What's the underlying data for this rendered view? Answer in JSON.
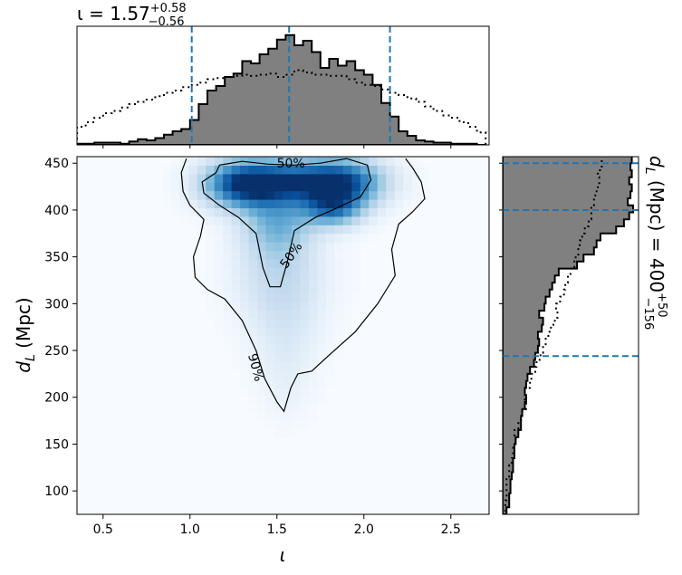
{
  "chart_data": {
    "type": "heatmap",
    "main": {
      "xlabel": "ι",
      "ylabel": "d_L (Mpc)",
      "xlim": [
        0.35,
        2.72
      ],
      "ylim": [
        75,
        457
      ],
      "xticks": [
        "0.5",
        "1.0",
        "1.5",
        "2.0",
        "2.5"
      ],
      "xtick_values": [
        0.5,
        1.0,
        1.5,
        2.0,
        2.5
      ],
      "yticks": [
        "100",
        "150",
        "200",
        "250",
        "300",
        "350",
        "400",
        "450"
      ],
      "ytick_values": [
        100,
        150,
        200,
        250,
        300,
        350,
        400,
        450
      ],
      "colormap": "Blues",
      "density_peaks": [
        {
          "x": 1.3,
          "y": 428,
          "weight": 1.0,
          "sx": 0.16,
          "sy": 18
        },
        {
          "x": 1.88,
          "y": 430,
          "weight": 0.95,
          "sx": 0.17,
          "sy": 18
        },
        {
          "x": 1.58,
          "y": 432,
          "weight": 0.7,
          "sx": 0.2,
          "sy": 16
        },
        {
          "x": 1.82,
          "y": 402,
          "weight": 0.7,
          "sx": 0.12,
          "sy": 14
        },
        {
          "x": 1.5,
          "y": 388,
          "weight": 0.5,
          "sx": 0.14,
          "sy": 25
        },
        {
          "x": 1.52,
          "y": 330,
          "weight": 0.28,
          "sx": 0.18,
          "sy": 35
        },
        {
          "x": 1.55,
          "y": 265,
          "weight": 0.14,
          "sx": 0.14,
          "sy": 35
        },
        {
          "x": 1.55,
          "y": 205,
          "weight": 0.06,
          "sx": 0.1,
          "sy": 25
        }
      ],
      "contours": [
        {
          "label": "50%",
          "points": [
            [
              1.15,
              440
            ],
            [
              1.17,
              448
            ],
            [
              1.3,
              452
            ],
            [
              1.45,
              449
            ],
            [
              1.6,
              448
            ],
            [
              1.75,
              450
            ],
            [
              1.9,
              455
            ],
            [
              2.02,
              448
            ],
            [
              2.04,
              432
            ],
            [
              1.98,
              414
            ],
            [
              1.82,
              400
            ],
            [
              1.72,
              392
            ],
            [
              1.6,
              378
            ],
            [
              1.56,
              345
            ],
            [
              1.52,
              318
            ],
            [
              1.46,
              318
            ],
            [
              1.42,
              338
            ],
            [
              1.38,
              375
            ],
            [
              1.28,
              392
            ],
            [
              1.17,
              405
            ],
            [
              1.08,
              418
            ],
            [
              1.07,
              430
            ],
            [
              1.15,
              440
            ]
          ]
        },
        {
          "label": "90%",
          "points": [
            [
              0.98,
              455
            ],
            [
              0.95,
              440
            ],
            [
              0.96,
              420
            ],
            [
              1.0,
              405
            ],
            [
              1.08,
              390
            ],
            [
              1.06,
              372
            ],
            [
              1.02,
              350
            ],
            [
              1.03,
              328
            ],
            [
              1.1,
              315
            ],
            [
              1.2,
              305
            ],
            [
              1.3,
              282
            ],
            [
              1.38,
              250
            ],
            [
              1.43,
              220
            ],
            [
              1.5,
              195
            ],
            [
              1.54,
              185
            ],
            [
              1.58,
              210
            ],
            [
              1.62,
              225
            ],
            [
              1.7,
              228
            ],
            [
              1.8,
              245
            ],
            [
              1.95,
              270
            ],
            [
              2.08,
              300
            ],
            [
              2.18,
              330
            ],
            [
              2.16,
              358
            ],
            [
              2.2,
              385
            ],
            [
              2.28,
              398
            ],
            [
              2.35,
              412
            ],
            [
              2.33,
              430
            ],
            [
              2.28,
              445
            ],
            [
              2.24,
              455
            ]
          ]
        }
      ],
      "contour_labels": [
        {
          "text": "50%",
          "x": 1.58,
          "y": 450,
          "rotate": 0
        },
        {
          "text": "50%",
          "x": 1.58,
          "y": 352,
          "rotate": -55
        },
        {
          "text": "90%",
          "x": 1.38,
          "y": 232,
          "rotate": 75
        }
      ]
    },
    "top": {
      "title_text": "ι = 1.57",
      "title_sup": "+0.58",
      "title_sub": "−0.56",
      "type": "histogram",
      "bin_start": 0.35,
      "bin_width": 0.05,
      "posterior": [
        0.01,
        0.01,
        0.02,
        0.02,
        0.02,
        0.01,
        0.03,
        0.05,
        0.04,
        0.06,
        0.09,
        0.12,
        0.14,
        0.22,
        0.36,
        0.48,
        0.52,
        0.6,
        0.63,
        0.74,
        0.72,
        0.8,
        0.85,
        0.93,
        0.97,
        0.88,
        0.92,
        0.82,
        0.68,
        0.76,
        0.7,
        0.74,
        0.66,
        0.62,
        0.53,
        0.37,
        0.25,
        0.12,
        0.08,
        0.04,
        0.03,
        0.02,
        0.02,
        0.01,
        0.01,
        0.01,
        0.0
      ],
      "prior": [
        0.16,
        0.2,
        0.24,
        0.28,
        0.3,
        0.33,
        0.36,
        0.38,
        0.4,
        0.43,
        0.46,
        0.48,
        0.51,
        0.53,
        0.55,
        0.58,
        0.59,
        0.6,
        0.61,
        0.62,
        0.61,
        0.62,
        0.63,
        0.6,
        0.62,
        0.66,
        0.64,
        0.62,
        0.62,
        0.61,
        0.61,
        0.58,
        0.55,
        0.53,
        0.52,
        0.49,
        0.46,
        0.44,
        0.41,
        0.38,
        0.34,
        0.3,
        0.26,
        0.24,
        0.2,
        0.16,
        0.11
      ],
      "median": 1.57,
      "lower": 1.01,
      "upper": 2.15
    },
    "right": {
      "label_text": "d_L (Mpc) = 400",
      "label_sup": "+50",
      "label_sub": "−156",
      "type": "histogram",
      "bin_start": 75,
      "bin_width": 7.5,
      "posterior": [
        0.03,
        0.05,
        0.05,
        0.06,
        0.06,
        0.07,
        0.08,
        0.08,
        0.09,
        0.09,
        0.1,
        0.12,
        0.14,
        0.14,
        0.15,
        0.17,
        0.18,
        0.17,
        0.18,
        0.19,
        0.21,
        0.24,
        0.25,
        0.27,
        0.28,
        0.27,
        0.3,
        0.31,
        0.28,
        0.32,
        0.33,
        0.36,
        0.38,
        0.4,
        0.43,
        0.57,
        0.62,
        0.7,
        0.72,
        0.75,
        0.87,
        0.93,
        0.97,
        1.0,
        0.96,
        0.98,
        0.99,
        0.97,
        0.99,
        0.98,
        0.99
      ],
      "prior": [
        0.02,
        0.02,
        0.03,
        0.03,
        0.03,
        0.05,
        0.05,
        0.07,
        0.08,
        0.08,
        0.1,
        0.09,
        0.12,
        0.14,
        0.15,
        0.18,
        0.17,
        0.17,
        0.21,
        0.22,
        0.25,
        0.26,
        0.29,
        0.31,
        0.33,
        0.35,
        0.37,
        0.4,
        0.42,
        0.41,
        0.44,
        0.47,
        0.48,
        0.5,
        0.52,
        0.55,
        0.56,
        0.58,
        0.59,
        0.61,
        0.63,
        0.66,
        0.68,
        0.68,
        0.7,
        0.71,
        0.73,
        0.74,
        0.73,
        0.76,
        0.76
      ],
      "median": 400,
      "lower": 244,
      "upper": 450
    }
  }
}
